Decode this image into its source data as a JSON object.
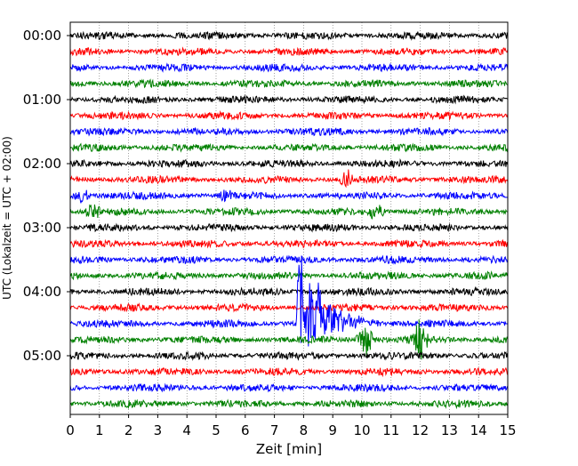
{
  "chart_data": {
    "type": "line",
    "title": "",
    "xlabel": "Zeit  [min]",
    "ylabel": "UTC (Lokalzeit = UTC + 02:00)",
    "xlim": [
      0,
      15
    ],
    "x_ticks": [
      "0",
      "1",
      "2",
      "3",
      "4",
      "5",
      "6",
      "7",
      "8",
      "9",
      "10",
      "11",
      "12",
      "13",
      "14",
      "15"
    ],
    "y_tick_labels": [
      "00:00",
      "01:00",
      "02:00",
      "03:00",
      "04:00",
      "05:00"
    ],
    "trace_interval_min": 15,
    "trace_count": 24,
    "trace_color_cycle": [
      "#000000",
      "#ff0000",
      "#0000ff",
      "#008000"
    ],
    "vertical_grid": true,
    "events": [
      {
        "trace_start": "02:15",
        "minute": 9.5,
        "amplitude": "small"
      },
      {
        "trace_start": "02:30",
        "minute": 0.4,
        "amplitude": "small"
      },
      {
        "trace_start": "02:30",
        "minute": 5.3,
        "amplitude": "small"
      },
      {
        "trace_start": "02:45",
        "minute": 0.8,
        "amplitude": "small"
      },
      {
        "trace_start": "02:45",
        "minute": 10.5,
        "amplitude": "small"
      },
      {
        "trace_start": "04:30",
        "minute": 7.8,
        "amplitude": "large"
      },
      {
        "trace_start": "04:45",
        "minute": 10.1,
        "amplitude": "medium"
      },
      {
        "trace_start": "04:45",
        "minute": 12.0,
        "amplitude": "medium"
      }
    ]
  }
}
